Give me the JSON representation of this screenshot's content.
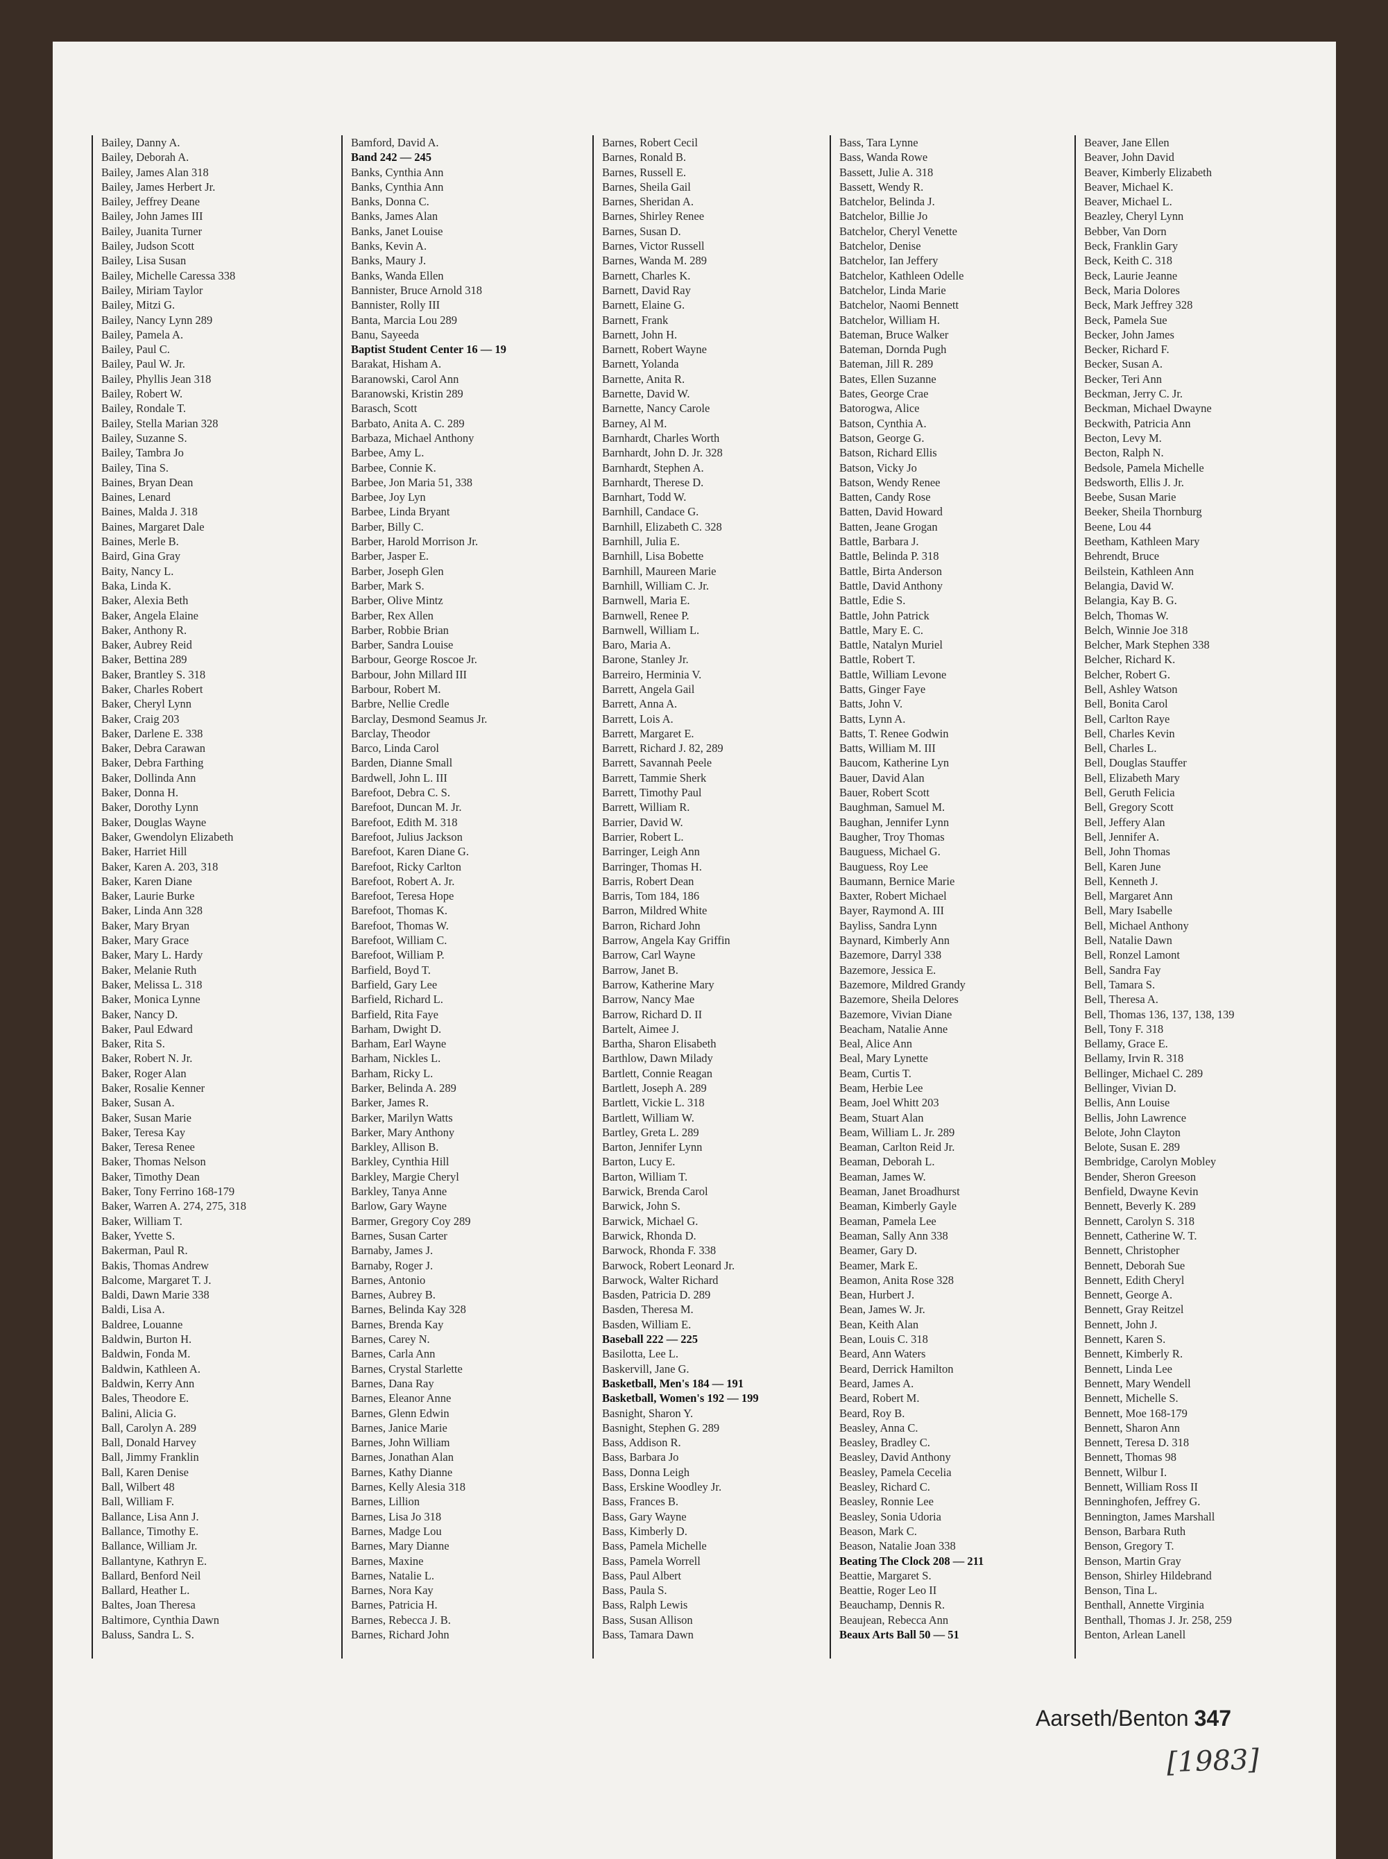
{
  "columns": [
    {
      "entries": [
        "Bailey, Danny A.",
        "Bailey, Deborah A.",
        "Bailey, James Alan 318",
        "Bailey, James Herbert Jr.",
        "Bailey, Jeffrey Deane",
        "Bailey, John James III",
        "Bailey, Juanita Turner",
        "Bailey, Judson Scott",
        "Bailey, Lisa Susan",
        "Bailey, Michelle Caressa 338",
        "Bailey, Miriam Taylor",
        "Bailey, Mitzi G.",
        "Bailey, Nancy Lynn 289",
        "Bailey, Pamela A.",
        "Bailey, Paul C.",
        "Bailey, Paul W. Jr.",
        "Bailey, Phyllis Jean 318",
        "Bailey, Robert W.",
        "Bailey, Rondale T.",
        "Bailey, Stella Marian 328",
        "Bailey, Suzanne S.",
        "Bailey, Tambra Jo",
        "Bailey, Tina S.",
        "Baines, Bryan Dean",
        "Baines, Lenard",
        "Baines, Malda J. 318",
        "Baines, Margaret Dale",
        "Baines, Merle B.",
        "Baird, Gina Gray",
        "Baity, Nancy L.",
        "Baka, Linda K.",
        "Baker, Alexia Beth",
        "Baker, Angela Elaine",
        "Baker, Anthony R.",
        "Baker, Aubrey Reid",
        "Baker, Bettina 289",
        "Baker, Brantley S. 318",
        "Baker, Charles Robert",
        "Baker, Cheryl Lynn",
        "Baker, Craig 203",
        "Baker, Darlene E. 338",
        "Baker, Debra Carawan",
        "Baker, Debra Farthing",
        "Baker, Dollinda Ann",
        "Baker, Donna H.",
        "Baker, Dorothy Lynn",
        "Baker, Douglas Wayne",
        "Baker, Gwendolyn Elizabeth",
        "Baker, Harriet Hill",
        "Baker, Karen A. 203, 318",
        "Baker, Karen Diane",
        "Baker, Laurie Burke",
        "Baker, Linda Ann 328",
        "Baker, Mary Bryan",
        "Baker, Mary Grace",
        "Baker, Mary L. Hardy",
        "Baker, Melanie Ruth",
        "Baker, Melissa L. 318",
        "Baker, Monica Lynne",
        "Baker, Nancy D.",
        "Baker, Paul Edward",
        "Baker, Rita S.",
        "Baker, Robert N. Jr.",
        "Baker, Roger Alan",
        "Baker, Rosalie Kenner",
        "Baker, Susan A.",
        "Baker, Susan Marie",
        "Baker, Teresa Kay",
        "Baker, Teresa Renee",
        "Baker, Thomas Nelson",
        "Baker, Timothy Dean",
        "Baker, Tony Ferrino 168-179",
        "Baker, Warren A. 274, 275, 318",
        "Baker, William T.",
        "Baker, Yvette S.",
        "Bakerman, Paul R.",
        "Bakis, Thomas Andrew",
        "Balcome, Margaret T. J.",
        "Baldi, Dawn Marie 338",
        "Baldi, Lisa A.",
        "Baldree, Louanne",
        "Baldwin, Burton H.",
        "Baldwin, Fonda M.",
        "Baldwin, Kathleen A.",
        "Baldwin, Kerry Ann",
        "Bales, Theodore E.",
        "Balini, Alicia G.",
        "Ball, Carolyn A. 289",
        "Ball, Donald Harvey",
        "Ball, Jimmy Franklin",
        "Ball, Karen Denise",
        "Ball, Wilbert 48",
        "Ball, William F.",
        "Ballance, Lisa Ann J.",
        "Ballance, Timothy E.",
        "Ballance, William Jr.",
        "Ballantyne, Kathryn E.",
        "Ballard, Benford Neil",
        "Ballard, Heather L.",
        "Baltes, Joan Theresa",
        "Baltimore, Cynthia Dawn",
        "Baluss, Sandra L. S."
      ]
    },
    {
      "entries": [
        "Bamford, David A.",
        {
          "text": "Band 242 — 245",
          "bold": true
        },
        "Banks, Cynthia Ann",
        "Banks, Cynthia Ann",
        "Banks, Donna C.",
        "Banks, James Alan",
        "Banks, Janet Louise",
        "Banks, Kevin A.",
        "Banks, Maury J.",
        "Banks, Wanda Ellen",
        "Bannister, Bruce Arnold 318",
        "Bannister, Rolly III",
        "Banta, Marcia Lou 289",
        "Banu, Sayeeda",
        {
          "text": "Baptist Student Center 16 — 19",
          "bold": true
        },
        "Barakat, Hisham A.",
        "Baranowski, Carol Ann",
        "Baranowski, Kristin 289",
        "Barasch, Scott",
        "Barbato, Anita A. C. 289",
        "Barbaza, Michael Anthony",
        "Barbee, Amy L.",
        "Barbee, Connie K.",
        "Barbee, Jon Maria 51, 338",
        "Barbee, Joy Lyn",
        "Barbee, Linda Bryant",
        "Barber, Billy C.",
        "Barber, Harold Morrison Jr.",
        "Barber, Jasper E.",
        "Barber, Joseph Glen",
        "Barber, Mark S.",
        "Barber, Olive Mintz",
        "Barber, Rex Allen",
        "Barber, Robbie Brian",
        "Barber, Sandra Louise",
        "Barbour, George Roscoe Jr.",
        "Barbour, John Millard III",
        "Barbour, Robert M.",
        "Barbre, Nellie Credle",
        "Barclay, Desmond Seamus Jr.",
        "Barclay, Theodor",
        "Barco, Linda Carol",
        "Barden, Dianne Small",
        "Bardwell, John L. III",
        "Barefoot, Debra C. S.",
        "Barefoot, Duncan M. Jr.",
        "Barefoot, Edith M. 318",
        "Barefoot, Julius Jackson",
        "Barefoot, Karen Diane G.",
        "Barefoot, Ricky Carlton",
        "Barefoot, Robert A. Jr.",
        "Barefoot, Teresa Hope",
        "Barefoot, Thomas K.",
        "Barefoot, Thomas W.",
        "Barefoot, William C.",
        "Barefoot, William P.",
        "Barfield, Boyd T.",
        "Barfield, Gary Lee",
        "Barfield, Richard L.",
        "Barfield, Rita Faye",
        "Barham, Dwight D.",
        "Barham, Earl Wayne",
        "Barham, Nickles L.",
        "Barham, Ricky L.",
        "Barker, Belinda A. 289",
        "Barker, James R.",
        "Barker, Marilyn Watts",
        "Barker, Mary Anthony",
        "Barkley, Allison B.",
        "Barkley, Cynthia Hill",
        "Barkley, Margie Cheryl",
        "Barkley, Tanya Anne",
        "Barlow, Gary Wayne",
        "Barmer, Gregory Coy 289",
        "Barnes, Susan Carter",
        "Barnaby, James J.",
        "Barnaby, Roger J.",
        "Barnes, Antonio",
        "Barnes, Aubrey B.",
        "Barnes, Belinda Kay 328",
        "Barnes, Brenda Kay",
        "Barnes, Carey N.",
        "Barnes, Carla Ann",
        "Barnes, Crystal Starlette",
        "Barnes, Dana Ray",
        "Barnes, Eleanor Anne",
        "Barnes, Glenn Edwin",
        "Barnes, Janice Marie",
        "Barnes, John William",
        "Barnes, Jonathan Alan",
        "Barnes, Kathy Dianne",
        "Barnes, Kelly Alesia 318",
        "Barnes, Lillion",
        "Barnes, Lisa Jo 318",
        "Barnes, Madge Lou",
        "Barnes, Mary Dianne",
        "Barnes, Maxine",
        "Barnes, Natalie L.",
        "Barnes, Nora Kay",
        "Barnes, Patricia H.",
        "Barnes, Rebecca J. B.",
        "Barnes, Richard John"
      ]
    },
    {
      "entries": [
        "Barnes, Robert Cecil",
        "Barnes, Ronald B.",
        "Barnes, Russell E.",
        "Barnes, Sheila Gail",
        "Barnes, Sheridan A.",
        "Barnes, Shirley Renee",
        "Barnes, Susan D.",
        "Barnes, Victor Russell",
        "Barnes, Wanda M. 289",
        "Barnett, Charles K.",
        "Barnett, David Ray",
        "Barnett, Elaine G.",
        "Barnett, Frank",
        "Barnett, John H.",
        "Barnett, Robert Wayne",
        "Barnett, Yolanda",
        "Barnette, Anita R.",
        "Barnette, David W.",
        "Barnette, Nancy Carole",
        "Barney, Al M.",
        "Barnhardt, Charles Worth",
        "Barnhardt, John D. Jr. 328",
        "Barnhardt, Stephen A.",
        "Barnhardt, Therese D.",
        "Barnhart, Todd W.",
        "Barnhill, Candace G.",
        "Barnhill, Elizabeth C. 328",
        "Barnhill, Julia E.",
        "Barnhill, Lisa Bobette",
        "Barnhill, Maureen Marie",
        "Barnhill, William C. Jr.",
        "Barnwell, Maria E.",
        "Barnwell, Renee P.",
        "Barnwell, William L.",
        "Baro, Maria A.",
        "Barone, Stanley Jr.",
        "Barreiro, Herminia V.",
        "Barrett, Angela Gail",
        "Barrett, Anna A.",
        "Barrett, Lois A.",
        "Barrett, Margaret E.",
        "Barrett, Richard J. 82, 289",
        "Barrett, Savannah Peele",
        "Barrett, Tammie Sherk",
        "Barrett, Timothy Paul",
        "Barrett, William R.",
        "Barrier, David W.",
        "Barrier, Robert L.",
        "Barringer, Leigh Ann",
        "Barringer, Thomas H.",
        "Barris, Robert Dean",
        "Barris, Tom 184, 186",
        "Barron, Mildred White",
        "Barron, Richard John",
        "Barrow, Angela Kay Griffin",
        "Barrow, Carl Wayne",
        "Barrow, Janet B.",
        "Barrow, Katherine Mary",
        "Barrow, Nancy Mae",
        "Barrow, Richard D. II",
        "Bartelt, Aimee J.",
        "Bartha, Sharon Elisabeth",
        "Barthlow, Dawn Milady",
        "Bartlett, Connie Reagan",
        "Bartlett, Joseph A. 289",
        "Bartlett, Vickie L. 318",
        "Bartlett, William W.",
        "Bartley, Greta L. 289",
        "Barton, Jennifer Lynn",
        "Barton, Lucy E.",
        "Barton, William T.",
        "Barwick, Brenda Carol",
        "Barwick, John S.",
        "Barwick, Michael G.",
        "Barwick, Rhonda D.",
        "Barwock, Rhonda F. 338",
        "Barwock, Robert Leonard Jr.",
        "Barwock, Walter Richard",
        "Basden, Patricia D. 289",
        "Basden, Theresa M.",
        "Basden, William E.",
        {
          "text": "Baseball 222 — 225",
          "bold": true
        },
        "Basilotta, Lee L.",
        "Baskervill, Jane G.",
        {
          "text": "Basketball, Men's 184 — 191",
          "bold": true
        },
        {
          "text": "Basketball, Women's 192 — 199",
          "bold": true
        },
        "Basnight, Sharon Y.",
        "Basnight, Stephen G. 289",
        "Bass, Addison R.",
        "Bass, Barbara Jo",
        "Bass, Donna Leigh",
        "Bass, Erskine Woodley Jr.",
        "Bass, Frances B.",
        "Bass, Gary Wayne",
        "Bass, Kimberly D.",
        "Bass, Pamela Michelle",
        "Bass, Pamela Worrell",
        "Bass, Paul Albert",
        "Bass, Paula S.",
        "Bass, Ralph Lewis",
        "Bass, Susan Allison",
        "Bass, Tamara Dawn"
      ]
    },
    {
      "entries": [
        "Bass, Tara Lynne",
        "Bass, Wanda Rowe",
        "Bassett, Julie A. 318",
        "Bassett, Wendy R.",
        "Batchelor, Belinda J.",
        "Batchelor, Billie Jo",
        "Batchelor, Cheryl Venette",
        "Batchelor, Denise",
        "Batchelor, Ian Jeffery",
        "Batchelor, Kathleen Odelle",
        "Batchelor, Linda Marie",
        "Batchelor, Naomi Bennett",
        "Batchelor, William H.",
        "Bateman, Bruce Walker",
        "Bateman, Dornda Pugh",
        "Bateman, Jill R. 289",
        "Bates, Ellen Suzanne",
        "Bates, George Crae",
        "Batorogwa, Alice",
        "Batson, Cynthia A.",
        "Batson, George G.",
        "Batson, Richard Ellis",
        "Batson, Vicky Jo",
        "Batson, Wendy Renee",
        "Batten, Candy Rose",
        "Batten, David Howard",
        "Batten, Jeane Grogan",
        "Battle, Barbara J.",
        "Battle, Belinda P. 318",
        "Battle, Birta Anderson",
        "Battle, David Anthony",
        "Battle, Edie S.",
        "Battle, John Patrick",
        "Battle, Mary E. C.",
        "Battle, Natalyn Muriel",
        "Battle, Robert T.",
        "Battle, William Levone",
        "Batts, Ginger Faye",
        "Batts, John V.",
        "Batts, Lynn A.",
        "Batts, T. Renee Godwin",
        "Batts, William M. III",
        "Baucom, Katherine Lyn",
        "Bauer, David Alan",
        "Bauer, Robert Scott",
        "Baughman, Samuel M.",
        "Baughan, Jennifer Lynn",
        "Baugher, Troy Thomas",
        "Bauguess, Michael G.",
        "Bauguess, Roy Lee",
        "Baumann, Bernice Marie",
        "Baxter, Robert Michael",
        "Bayer, Raymond A. III",
        "Bayliss, Sandra Lynn",
        "Baynard, Kimberly Ann",
        "Bazemore, Darryl 338",
        "Bazemore, Jessica E.",
        "Bazemore, Mildred Grandy",
        "Bazemore, Sheila Delores",
        "Bazemore, Vivian Diane",
        "Beacham, Natalie Anne",
        "Beal, Alice Ann",
        "Beal, Mary Lynette",
        "Beam, Curtis T.",
        "Beam, Herbie Lee",
        "Beam, Joel Whitt 203",
        "Beam, Stuart Alan",
        "Beam, William L. Jr. 289",
        "Beaman, Carlton Reid Jr.",
        "Beaman, Deborah L.",
        "Beaman, James W.",
        "Beaman, Janet Broadhurst",
        "Beaman, Kimberly Gayle",
        "Beaman, Pamela Lee",
        "Beaman, Sally Ann 338",
        "Beamer, Gary D.",
        "Beamer, Mark E.",
        "Beamon, Anita Rose 328",
        "Bean, Hurbert J.",
        "Bean, James W. Jr.",
        "Bean, Keith Alan",
        "Bean, Louis C. 318",
        "Beard, Ann Waters",
        "Beard, Derrick Hamilton",
        "Beard, James A.",
        "Beard, Robert M.",
        "Beard, Roy B.",
        "Beasley, Anna C.",
        "Beasley, Bradley C.",
        "Beasley, David Anthony",
        "Beasley, Pamela Cecelia",
        "Beasley, Richard C.",
        "Beasley, Ronnie Lee",
        "Beasley, Sonia Udoria",
        "Beason, Mark C.",
        "Beason, Natalie Joan 338",
        {
          "text": "Beating The Clock 208 — 211",
          "bold": true
        },
        "Beattie, Margaret S.",
        "Beattie, Roger Leo II",
        "Beauchamp, Dennis R.",
        "Beaujean, Rebecca Ann",
        {
          "text": "Beaux Arts Ball 50 — 51",
          "bold": true
        }
      ]
    },
    {
      "entries": [
        "Beaver, Jane Ellen",
        "Beaver, John David",
        "Beaver, Kimberly Elizabeth",
        "Beaver, Michael K.",
        "Beaver, Michael L.",
        "Beazley, Cheryl Lynn",
        "Bebber, Van Dorn",
        "Beck, Franklin Gary",
        "Beck, Keith C. 318",
        "Beck, Laurie Jeanne",
        "Beck, Maria Dolores",
        "Beck, Mark Jeffrey 328",
        "Beck, Pamela Sue",
        "Becker, John James",
        "Becker, Richard F.",
        "Becker, Susan A.",
        "Becker, Teri Ann",
        "Beckman, Jerry C. Jr.",
        "Beckman, Michael Dwayne",
        "Beckwith, Patricia Ann",
        "Becton, Levy M.",
        "Becton, Ralph N.",
        "Bedsole, Pamela Michelle",
        "Bedsworth, Ellis J. Jr.",
        "Beebe, Susan Marie",
        "Beeker, Sheila Thornburg",
        "Beene, Lou 44",
        "Beetham, Kathleen Mary",
        "Behrendt, Bruce",
        "Beilstein, Kathleen Ann",
        "Belangia, David W.",
        "Belangia, Kay B. G.",
        "Belch, Thomas W.",
        "Belch, Winnie Joe 318",
        "Belcher, Mark Stephen 338",
        "Belcher, Richard K.",
        "Belcher, Robert G.",
        "Bell, Ashley Watson",
        "Bell, Bonita Carol",
        "Bell, Carlton Raye",
        "Bell, Charles Kevin",
        "Bell, Charles L.",
        "Bell, Douglas Stauffer",
        "Bell, Elizabeth Mary",
        "Bell, Geruth Felicia",
        "Bell, Gregory Scott",
        "Bell, Jeffery Alan",
        "Bell, Jennifer A.",
        "Bell, John Thomas",
        "Bell, Karen June",
        "Bell, Kenneth J.",
        "Bell, Margaret Ann",
        "Bell, Mary Isabelle",
        "Bell, Michael Anthony",
        "Bell, Natalie Dawn",
        "Bell, Ronzel Lamont",
        "Bell, Sandra Fay",
        "Bell, Tamara S.",
        "Bell, Theresa A.",
        "Bell, Thomas 136, 137, 138, 139",
        "Bell, Tony F. 318",
        "Bellamy, Grace E.",
        "Bellamy, Irvin R. 318",
        "Bellinger, Michael C. 289",
        "Bellinger, Vivian D.",
        "Bellis, Ann Louise",
        "Bellis, John Lawrence",
        "Belote, John Clayton",
        "Belote, Susan E. 289",
        "Bembridge, Carolyn Mobley",
        "Bender, Sheron Greeson",
        "Benfield, Dwayne Kevin",
        "Bennett, Beverly K. 289",
        "Bennett, Carolyn S. 318",
        "Bennett, Catherine W. T.",
        "Bennett, Christopher",
        "Bennett, Deborah Sue",
        "Bennett, Edith Cheryl",
        "Bennett, George A.",
        "Bennett, Gray Reitzel",
        "Bennett, John J.",
        "Bennett, Karen S.",
        "Bennett, Kimberly R.",
        "Bennett, Linda Lee",
        "Bennett, Mary Wendell",
        "Bennett, Michelle S.",
        "Bennett, Moe 168-179",
        "Bennett, Sharon Ann",
        "Bennett, Teresa D. 318",
        "Bennett, Thomas 98",
        "Bennett, Wilbur I.",
        "Bennett, William Ross II",
        "Benninghofen, Jeffrey G.",
        "Bennington, James Marshall",
        "Benson, Barbara Ruth",
        "Benson, Gregory T.",
        "Benson, Martin Gray",
        "Benson, Shirley Hildebrand",
        "Benson, Tina L.",
        "Benthall, Annette Virginia",
        "Benthall, Thomas J. Jr. 258, 259",
        "Benton, Arlean Lanell"
      ]
    }
  ],
  "footer": {
    "range": "Aarseth/Benton",
    "page_number": "347"
  },
  "handwritten_note": "[1983]",
  "colors": {
    "background": "#3a2d25",
    "paper": "#f3f2ee",
    "text": "#2a2a2a"
  }
}
